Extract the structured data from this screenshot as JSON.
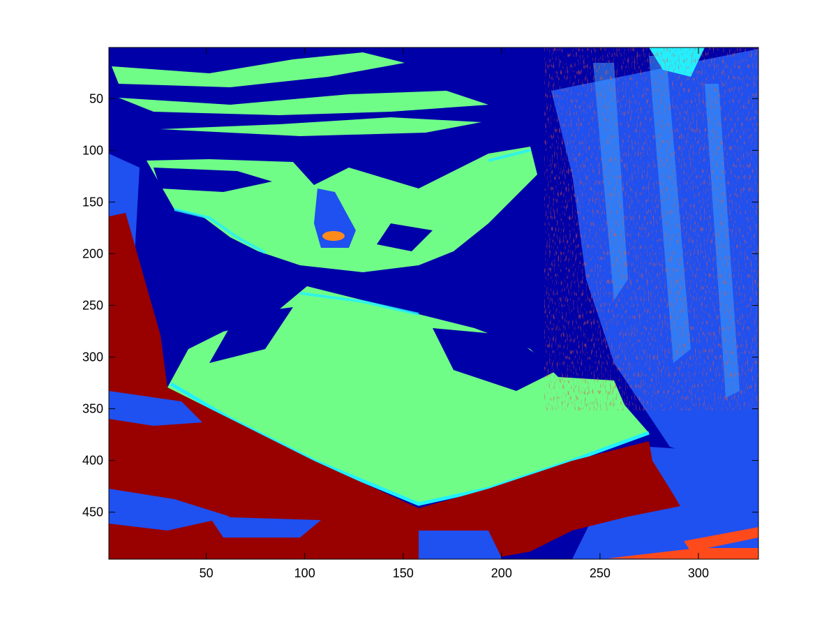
{
  "chart_data": {
    "type": "heatmap",
    "title": "",
    "xlabel": "",
    "ylabel": "",
    "colormap": "jet",
    "image_size": {
      "columns": 330,
      "rows": 495
    },
    "xlim": [
      0.5,
      330.5
    ],
    "ylim": [
      495.5,
      0.5
    ],
    "y_axis_reversed": true,
    "x_ticks": [
      50,
      100,
      150,
      200,
      250,
      300
    ],
    "y_ticks": [
      50,
      100,
      150,
      200,
      250,
      300,
      350,
      400,
      450
    ],
    "x_tick_labels": [
      "50",
      "100",
      "150",
      "200",
      "250",
      "300"
    ],
    "y_tick_labels": [
      "50",
      "100",
      "150",
      "200",
      "250",
      "300",
      "350",
      "400",
      "450"
    ],
    "grid": false,
    "colors": {
      "dark_blue": "#0000a8",
      "blue": "#1f50f0",
      "light_blue": "#3aa0ff",
      "cyan": "#22f0ff",
      "light_green": "#6ffd88",
      "orange": "#ff5a1c",
      "dark_red": "#990000"
    }
  }
}
